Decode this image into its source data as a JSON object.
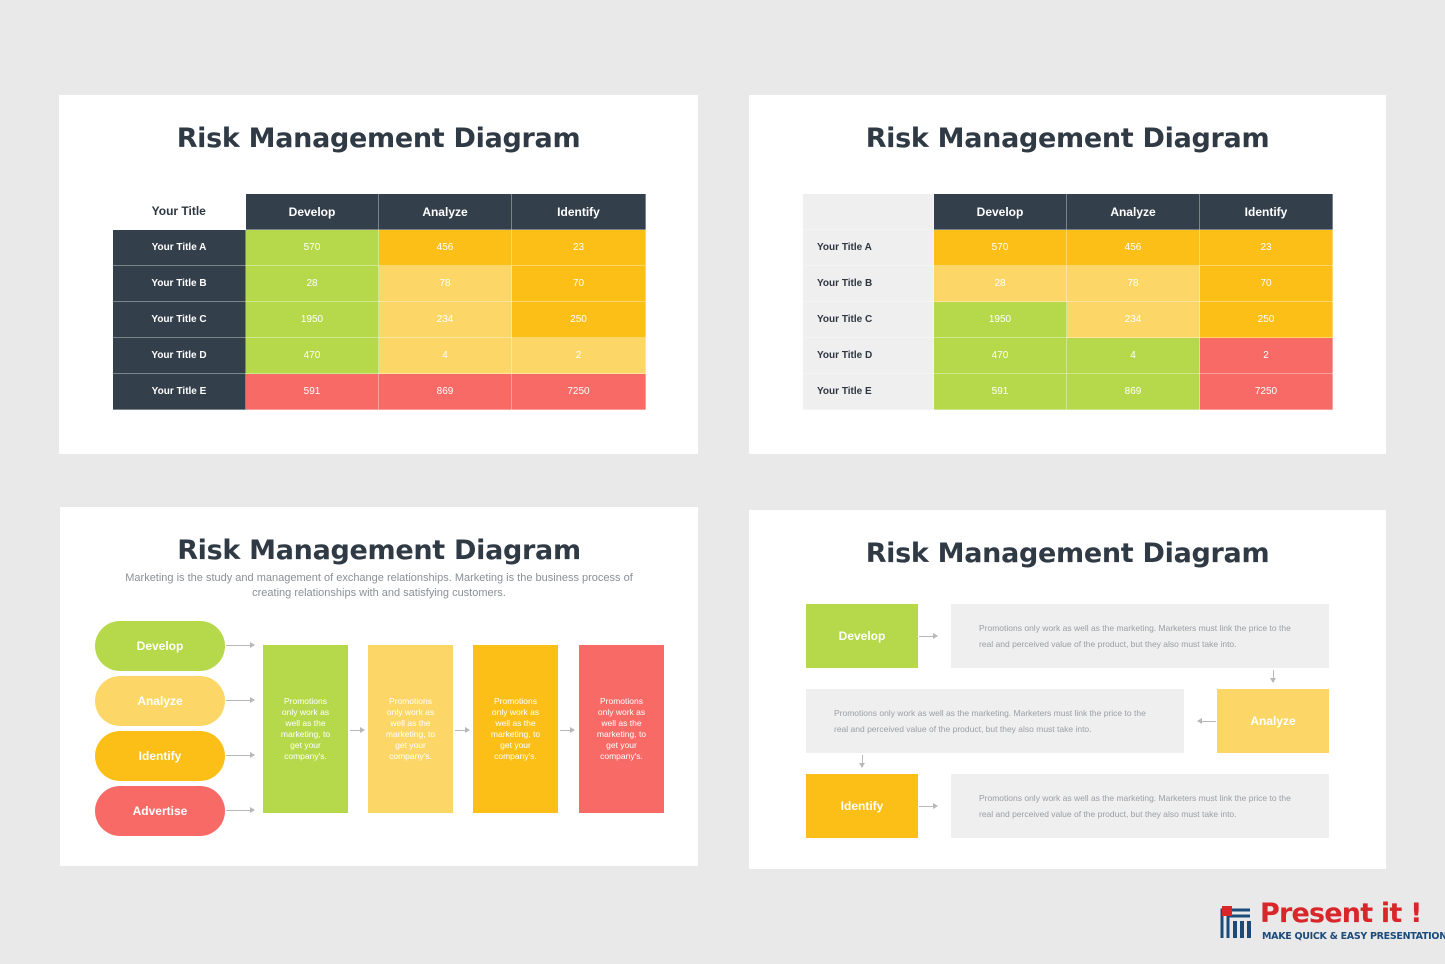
{
  "slide1": {
    "title": "Risk Management Diagram",
    "corner_label": "Your Title",
    "columns": [
      "Develop",
      "Analyze",
      "Identify"
    ],
    "rows": [
      {
        "label": "Your Title A",
        "values": [
          "570",
          "456",
          "23"
        ]
      },
      {
        "label": "Your Title B",
        "values": [
          "28",
          "78",
          "70"
        ]
      },
      {
        "label": "Your Title C",
        "values": [
          "1950",
          "234",
          "250"
        ]
      },
      {
        "label": "Your Title D",
        "values": [
          "470",
          "4",
          "2"
        ]
      },
      {
        "label": "Your Title E",
        "values": [
          "591",
          "869",
          "7250"
        ]
      }
    ]
  },
  "slide2": {
    "title": "Risk Management Diagram",
    "columns": [
      "Develop",
      "Analyze",
      "Identify"
    ],
    "rows": [
      {
        "label": "Your Title A",
        "values": [
          "570",
          "456",
          "23"
        ]
      },
      {
        "label": "Your Title B",
        "values": [
          "28",
          "78",
          "70"
        ]
      },
      {
        "label": "Your Title C",
        "values": [
          "1950",
          "234",
          "250"
        ]
      },
      {
        "label": "Your Title D",
        "values": [
          "470",
          "4",
          "2"
        ]
      },
      {
        "label": "Your Title E",
        "values": [
          "591",
          "869",
          "7250"
        ]
      }
    ]
  },
  "slide3": {
    "title": "Risk Management Diagram",
    "subtitle": "Marketing is the study and management of exchange relationships. Marketing is the business process of creating relationships with and satisfying customers.",
    "steps": [
      "Develop",
      "Analyze",
      "Identify",
      "Advertise"
    ],
    "box_text": "Promotions only work as well as the marketing, to get your company's."
  },
  "slide4": {
    "title": "Risk Management Diagram",
    "steps": [
      "Develop",
      "Analyze",
      "Identify"
    ],
    "box_text": "Promotions only work as well as the marketing. Marketers must link the price to the real and perceived value of the product, but they also must  take into."
  },
  "colors": {
    "green": "#b5d94a",
    "light_yellow": "#fcd767",
    "yellow": "#fcbf18",
    "red": "#f76a66",
    "dark": "#343f4c"
  },
  "logo": {
    "name": "Present it !",
    "tagline": "MAKE QUICK & EASY PRESENTATIONS"
  }
}
